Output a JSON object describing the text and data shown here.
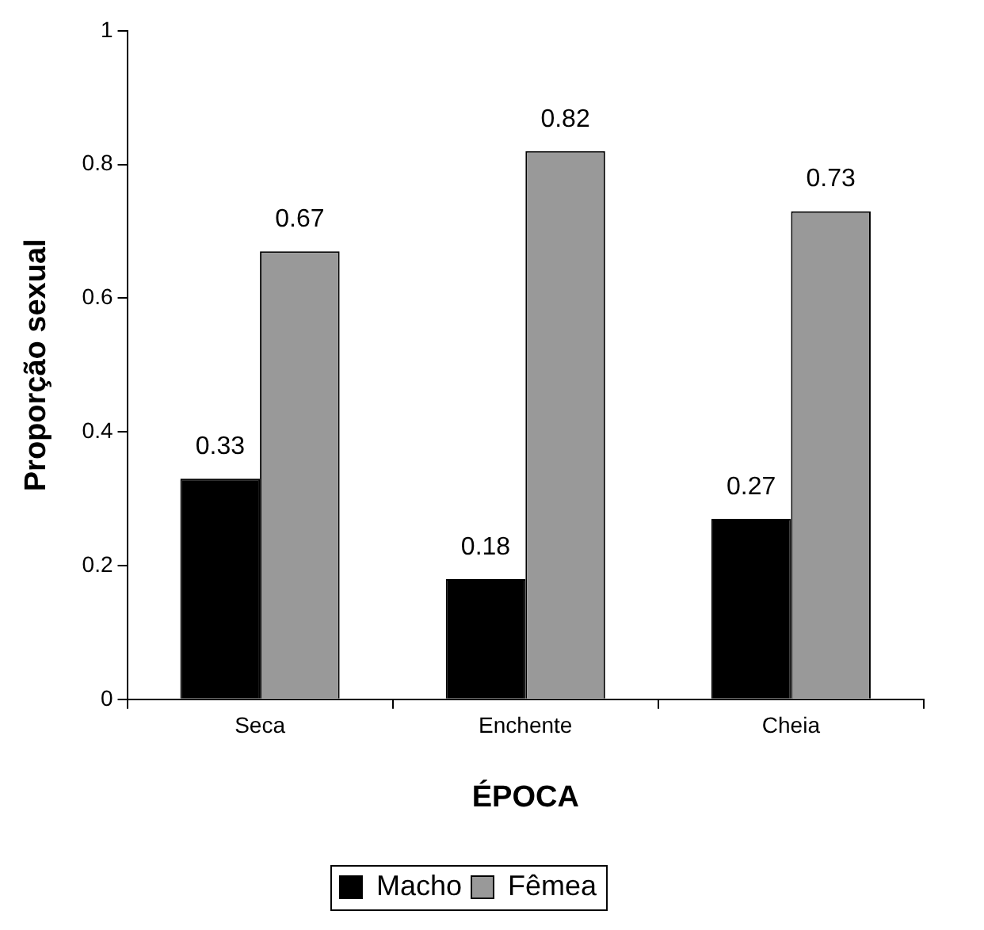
{
  "chart_data": {
    "type": "bar",
    "xlabel": "ÉPOCA",
    "ylabel": "Proporção sexual",
    "categories": [
      "Seca",
      "Enchente",
      "Cheia"
    ],
    "series": [
      {
        "name": "Macho",
        "color": "#000000",
        "values": [
          0.33,
          0.18,
          0.27
        ]
      },
      {
        "name": "Fêmea",
        "color": "#999999",
        "values": [
          0.67,
          0.82,
          0.73
        ]
      }
    ],
    "ylim": [
      0,
      1
    ],
    "yticks": [
      0,
      0.2,
      0.4,
      0.6,
      0.8,
      1
    ],
    "grid": false,
    "legend": "bottom",
    "data_labels": true
  }
}
